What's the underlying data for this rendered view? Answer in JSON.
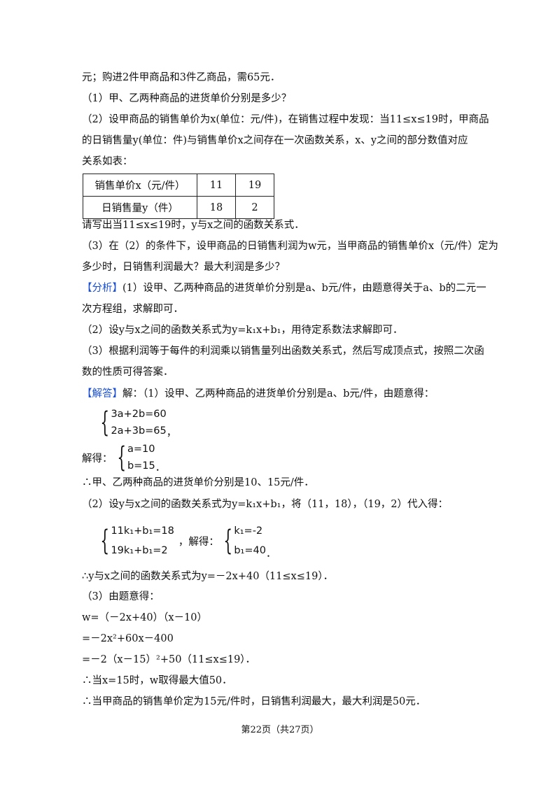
{
  "lines": {
    "l1": "元；购进2件甲商品和3件乙商品，需65元．",
    "l2": "（1）甲、乙两种商品的进货单价分别是多少？",
    "l3": "（2）设甲商品的销售单价为x(单位：元/件)，在销售过程中发现：当11≤x≤19时，甲商品",
    "l4": "的日销售量y(单位：件)与销售单价x之间存在一次函数关系，x、y之间的部分数值对应",
    "l5": "关系如表：",
    "l6": "请写出当11≤x≤19时，y与x之间的函数关系式．",
    "l7": "（3）在（2）的条件下，设甲商品的日销售利润为w元，当甲商品的销售单价x（元/件）定为",
    "l8": "多少时，日销售利润最大？最大利润是多少？",
    "analysis_tag": "【分析】",
    "l9": "(1）设甲、乙两种商品的进货单价分别是a、b元/件，由题意得关于a、b的二元一",
    "l10": "次方程组，求解即可．",
    "l11": "（2）设y与x之间的函数关系式为y=k₁x+b₁，用待定系数法求解即可．",
    "l12": "（3）根据利润等于每件的利润乘以销售量列出函数关系式，然后写成顶点式，按照二次函",
    "l13": "数的性质可得答案．",
    "answer_tag": "【解答】",
    "l14": "解：（1）设甲、乙两种商品的进货单价分别是a、b元/件，由题意得：",
    "l15": "∴甲、乙两种商品的进货单价分别是10、15元/件．",
    "l16": "（2）设y与x之间的函数关系式为y=k₁x+b₁，将（11，18），（19，2）代入得：",
    "l17": "∴y与x之间的函数关系式为y=－2x+40（11≤x≤19）．",
    "l18": "（3）由题意得：",
    "l19": "w=（－2x+40）（x－10）",
    "l20": "=－2x²+60x－400",
    "l21": "=－2（x－15）²+50（11≤x≤19）．",
    "l22": "∴当x=15时，w取得最大值50．",
    "l23": "∴当甲商品的销售单价定为15元/件时，日销售利润最大，最大利润是50元．"
  },
  "table": {
    "rows": [
      [
        "销售单价x（元/件）",
        "11",
        "19"
      ],
      [
        "日销售量y（件）",
        "18",
        "2"
      ]
    ]
  },
  "systems": {
    "s1": [
      "3a+2b=60",
      "2a+3b=65"
    ],
    "s1_end": "，",
    "solve_label": "解得：",
    "s2": [
      "a=10",
      "b=15"
    ],
    "s2_end": "．",
    "s3": [
      "11k₁+b₁=18",
      "19k₁+b₁=2"
    ],
    "s3_end": "，解得：",
    "s4": [
      "k₁=-2",
      "b₁=40"
    ],
    "s4_end": "．"
  },
  "footer": "第22页（共27页）",
  "colors": {
    "tag": "#1a4fd6"
  }
}
